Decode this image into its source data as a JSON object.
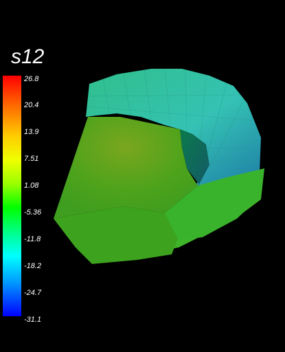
{
  "legend": {
    "title": "s12",
    "ticks": [
      "26.8",
      "20.4",
      "13.9",
      "7.51",
      "1.08",
      "-5.36",
      "-11.8",
      "-18.2",
      "-24.7",
      "-31.1"
    ],
    "colors": {
      "max": "#ff0000",
      "high": "#ffcc00",
      "mid": "#00ff00",
      "low": "#00ffff",
      "min": "#0000ff"
    }
  },
  "scene": {
    "background": "#000000",
    "object": "3D finite-element model colored by s12 stress field"
  }
}
